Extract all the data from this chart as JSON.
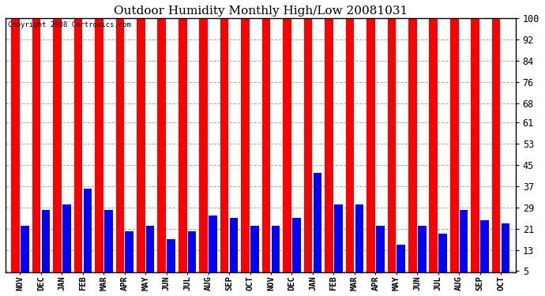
{
  "title": "Outdoor Humidity Monthly High/Low 20081031",
  "copyright_text": "Copyright 2008 Cartronics.com",
  "months": [
    "NOV",
    "DEC",
    "JAN",
    "FEB",
    "MAR",
    "APR",
    "MAY",
    "JUN",
    "JUL",
    "AUG",
    "SEP",
    "OCT",
    "NOV",
    "DEC",
    "JAN",
    "FEB",
    "MAR",
    "APR",
    "MAY",
    "JUN",
    "JUL",
    "AUG",
    "SEP",
    "OCT"
  ],
  "high_values": [
    100,
    100,
    100,
    100,
    100,
    100,
    100,
    100,
    100,
    100,
    100,
    100,
    100,
    100,
    100,
    100,
    100,
    100,
    100,
    100,
    100,
    100,
    100,
    100
  ],
  "low_values": [
    22,
    28,
    30,
    36,
    28,
    20,
    22,
    17,
    20,
    26,
    25,
    22,
    22,
    25,
    42,
    30,
    30,
    22,
    15,
    22,
    19,
    28,
    24,
    23
  ],
  "high_color": "#ff0000",
  "low_color": "#0000ff",
  "bg_color": "#ffffff",
  "plot_bg_color": "#ffffff",
  "yticks": [
    5,
    13,
    21,
    29,
    37,
    45,
    53,
    61,
    68,
    76,
    84,
    92,
    100
  ],
  "ymin": 5,
  "ymax": 100,
  "grid_color": "#aaaaaa",
  "title_fontsize": 11,
  "figsize": [
    6.9,
    3.75
  ],
  "dpi": 100
}
